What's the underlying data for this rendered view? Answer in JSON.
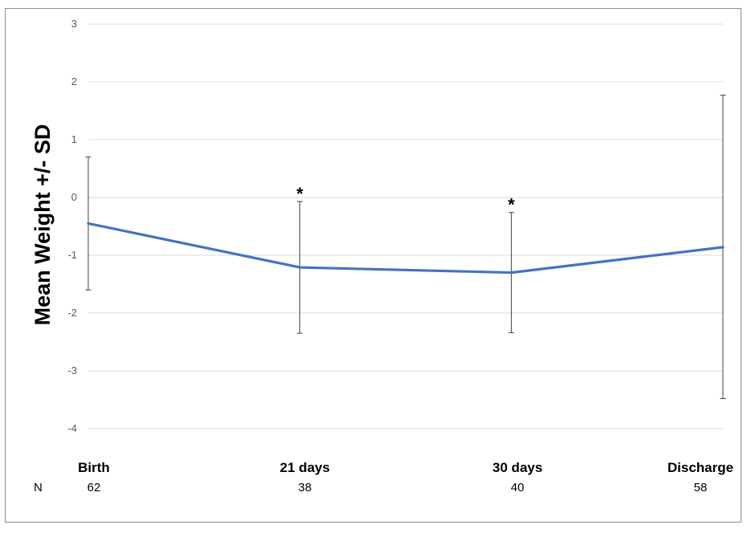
{
  "chart_data": {
    "type": "line",
    "ylabel": "Mean Weight +/- SD",
    "xlabel": "",
    "title": "",
    "categories": [
      "Birth",
      "21 days",
      "30 days",
      "Discharge"
    ],
    "series": [
      {
        "values": [
          -0.45,
          -1.21,
          -1.3,
          -0.86
        ],
        "sd_upper": [
          0.7,
          -0.07,
          -0.26,
          1.77
        ],
        "sd_lower": [
          -1.6,
          -2.35,
          -2.34,
          -3.48
        ],
        "color": "#4472C4"
      }
    ],
    "significance_markers": [
      "",
      "*",
      "*",
      ""
    ],
    "n_label": "N",
    "n_values": [
      "62",
      "38",
      "40",
      "58"
    ],
    "ylim": [
      -4,
      3
    ],
    "yticks": [
      "3",
      "2",
      "1",
      "0",
      "-1",
      "-2",
      "-3",
      "-4"
    ],
    "ytick_values": [
      3,
      2,
      1,
      0,
      -1,
      -2,
      -3,
      -4
    ],
    "grid": true,
    "legend": "none"
  }
}
